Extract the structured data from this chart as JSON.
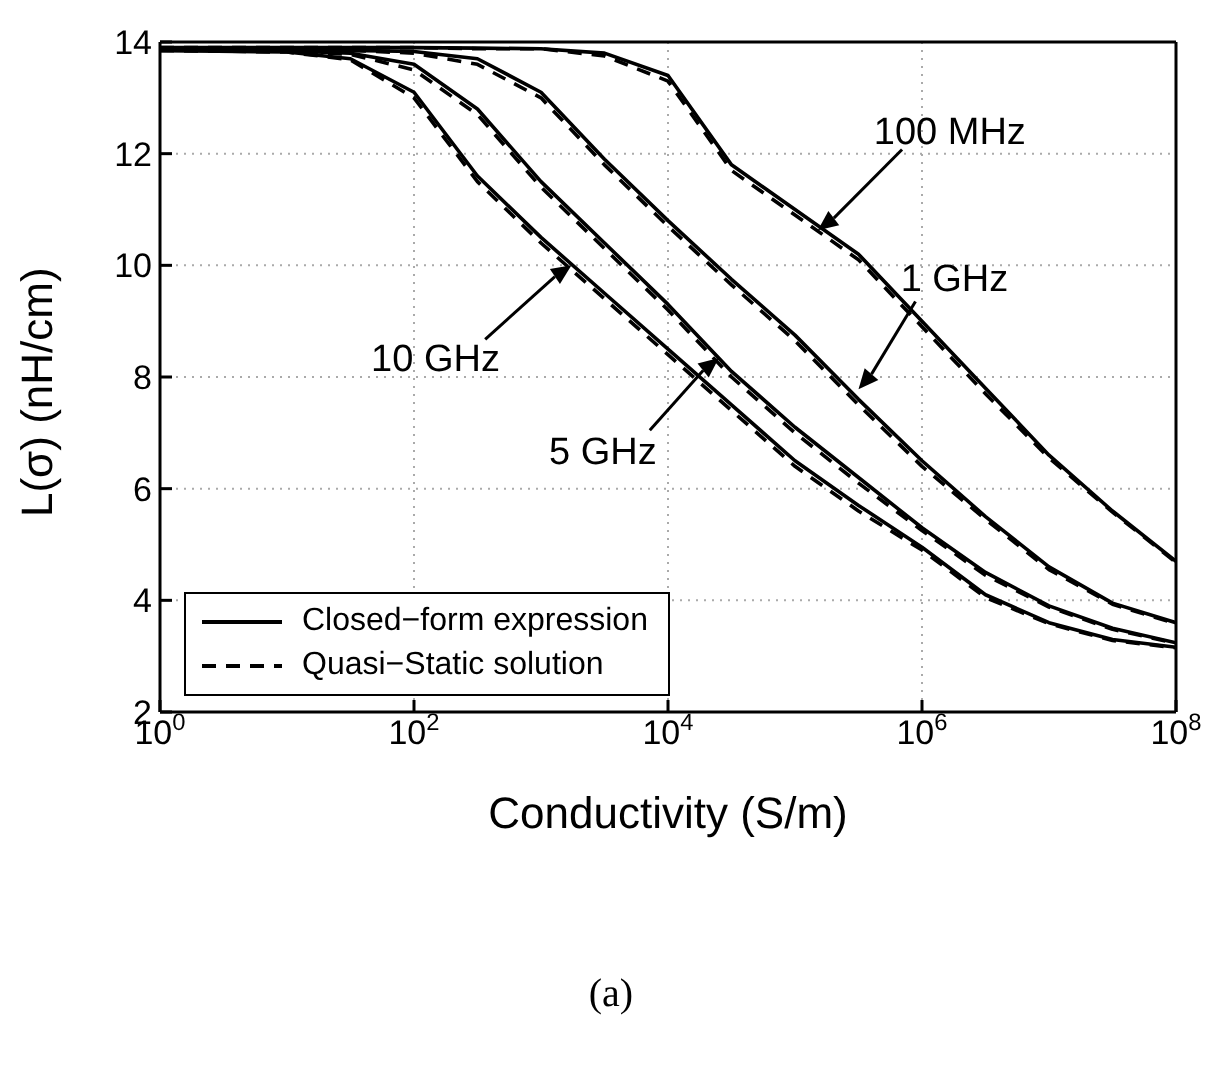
{
  "chart_data": {
    "type": "line",
    "xlabel": "Conductivity (S/m)",
    "ylabel": "L(σ) (nH/cm)",
    "x": [
      1,
      10,
      31.6,
      100,
      316,
      1000,
      3162,
      10000,
      31623,
      100000,
      316228,
      1000000,
      3162278,
      10000000,
      31622777,
      100000000
    ],
    "series": [
      {
        "name": "Closed−form expression",
        "color": "#000000",
        "line_style": "solid",
        "values": [
          13.85,
          13.82,
          13.7,
          13.1,
          11.6,
          10.5,
          9.5,
          8.5,
          7.5,
          6.5,
          5.7,
          4.95,
          4.1,
          3.6,
          3.3,
          3.16
        ]
      },
      {
        "name": "Quasi−Static solution",
        "color": "#000000",
        "line_style": "dashed",
        "values": [
          13.85,
          13.82,
          13.68,
          13.0,
          11.5,
          10.4,
          9.4,
          8.4,
          7.4,
          6.4,
          5.6,
          4.9,
          4.05,
          3.58,
          3.28,
          3.15
        ]
      },
      {
        "color": "#000000",
        "line_style": "solid",
        "values": [
          13.85,
          13.84,
          13.8,
          13.6,
          12.8,
          11.5,
          10.4,
          9.3,
          8.1,
          7.1,
          6.2,
          5.3,
          4.5,
          3.9,
          3.5,
          3.24
        ]
      },
      {
        "color": "#000000",
        "line_style": "dashed",
        "values": [
          13.85,
          13.84,
          13.78,
          13.5,
          12.7,
          11.4,
          10.3,
          9.2,
          8.0,
          7.0,
          6.1,
          5.25,
          4.45,
          3.88,
          3.48,
          3.23
        ]
      },
      {
        "color": "#000000",
        "line_style": "solid",
        "values": [
          13.86,
          13.86,
          13.85,
          13.83,
          13.7,
          13.1,
          11.9,
          10.8,
          9.75,
          8.75,
          7.6,
          6.5,
          5.5,
          4.6,
          3.95,
          3.6
        ]
      },
      {
        "color": "#000000",
        "line_style": "dashed",
        "values": [
          13.86,
          13.86,
          13.85,
          13.8,
          13.6,
          13.0,
          11.8,
          10.7,
          9.65,
          8.65,
          7.5,
          6.4,
          5.45,
          4.55,
          3.93,
          3.58
        ]
      },
      {
        "color": "#000000",
        "line_style": "solid",
        "values": [
          13.9,
          13.9,
          13.9,
          13.9,
          13.89,
          13.88,
          13.8,
          13.4,
          11.8,
          11.0,
          10.2,
          9.0,
          7.8,
          6.6,
          5.6,
          4.7
        ]
      },
      {
        "color": "#000000",
        "line_style": "dashed",
        "values": [
          13.9,
          13.9,
          13.9,
          13.9,
          13.88,
          13.88,
          13.75,
          13.3,
          11.7,
          10.9,
          10.1,
          8.9,
          7.7,
          6.55,
          5.58,
          4.68
        ]
      }
    ],
    "log": "x",
    "xlim": [
      1,
      100000000
    ],
    "xticks": [
      {
        "value": 1,
        "label": "10$^{0}$"
      },
      {
        "value": 100,
        "label": "10$^{2}$"
      },
      {
        "value": 10000,
        "label": "10$^{4}$"
      },
      {
        "value": 1000000,
        "label": "10$^{6}$"
      },
      {
        "value": 100000000,
        "label": "10$^{8}$"
      }
    ],
    "ylim": [
      2,
      14
    ],
    "yticks": [
      2,
      4,
      6,
      8,
      10,
      12,
      14
    ],
    "grid": true,
    "legend": "bottom left",
    "marker": "none",
    "annotations": [
      {
        "text": "10 GHz",
        "x": 1738,
        "y": 10
      },
      {
        "text": "5 GHz",
        "x": 25119,
        "y": 8.34
      },
      {
        "text": "1 GHz",
        "x": 316228,
        "y": 7.78
      },
      {
        "text": "100 MHz",
        "x": 151356,
        "y": 10.63
      },
      "(a)"
    ]
  }
}
